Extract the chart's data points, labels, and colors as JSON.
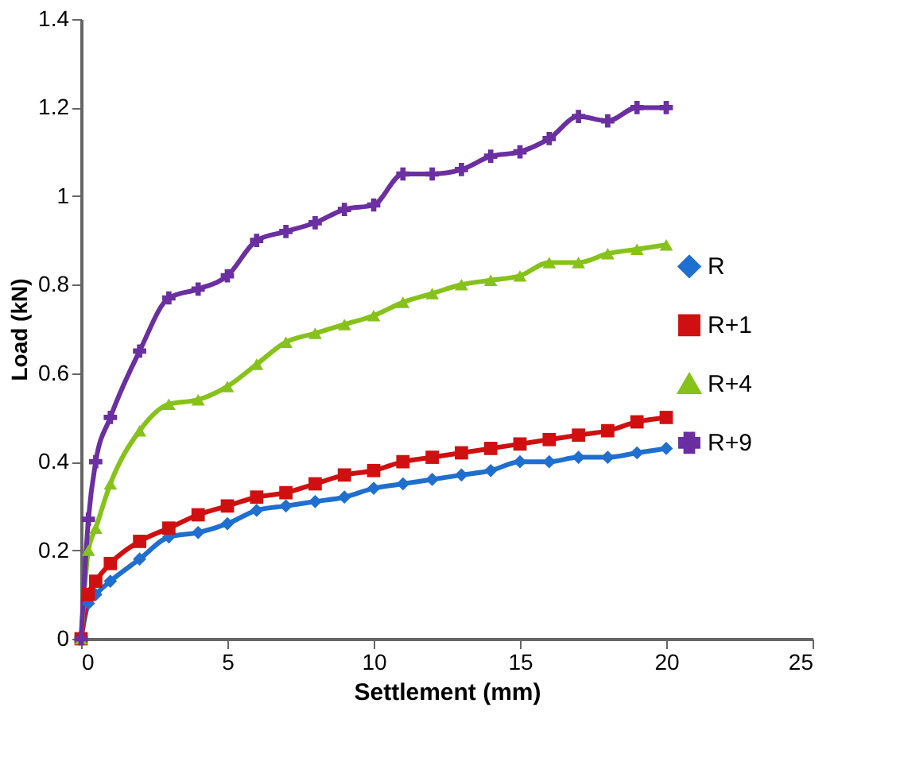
{
  "chart_data": {
    "type": "line",
    "xlabel": "Settlement (mm)",
    "ylabel": "Load (kN)",
    "x": [
      0,
      0.25,
      0.5,
      1,
      2,
      3,
      4,
      5,
      6,
      7,
      8,
      9,
      10,
      11,
      12,
      13,
      14,
      15,
      16,
      17,
      18,
      19,
      20
    ],
    "series": [
      {
        "name": "R",
        "color": "#1f6fd0",
        "marker": "diamond",
        "values": [
          0,
          0.08,
          0.1,
          0.13,
          0.18,
          0.23,
          0.24,
          0.26,
          0.29,
          0.3,
          0.31,
          0.32,
          0.34,
          0.35,
          0.36,
          0.37,
          0.38,
          0.4,
          0.4,
          0.41,
          0.41,
          0.42,
          0.43
        ]
      },
      {
        "name": "R+1",
        "color": "#d01010",
        "marker": "square",
        "values": [
          0,
          0.1,
          0.13,
          0.17,
          0.22,
          0.25,
          0.28,
          0.3,
          0.32,
          0.33,
          0.35,
          0.37,
          0.38,
          0.4,
          0.41,
          0.42,
          0.43,
          0.44,
          0.45,
          0.46,
          0.47,
          0.49,
          0.5
        ]
      },
      {
        "name": "R+4",
        "color": "#86c21a",
        "marker": "triangle",
        "values": [
          0,
          0.2,
          0.25,
          0.35,
          0.47,
          0.53,
          0.54,
          0.57,
          0.62,
          0.67,
          0.69,
          0.71,
          0.73,
          0.76,
          0.78,
          0.8,
          0.81,
          0.82,
          0.85,
          0.85,
          0.87,
          0.88,
          0.89
        ]
      },
      {
        "name": "R+9",
        "color": "#6a2fa0",
        "marker": "cross",
        "values": [
          0,
          0.27,
          0.4,
          0.5,
          0.65,
          0.77,
          0.79,
          0.82,
          0.9,
          0.92,
          0.94,
          0.97,
          0.98,
          1.05,
          1.05,
          1.06,
          1.09,
          1.1,
          1.13,
          1.18,
          1.17,
          1.2,
          1.2
        ]
      }
    ],
    "xlim": [
      0,
      25
    ],
    "xticks": [
      0,
      5,
      10,
      15,
      20,
      25
    ],
    "ylim": [
      0,
      1.4
    ],
    "yticks": [
      0,
      0.2,
      0.4,
      0.6,
      0.8,
      1,
      1.2,
      1.4
    ],
    "grid": false,
    "legend": "right",
    "line_style": "solid"
  }
}
